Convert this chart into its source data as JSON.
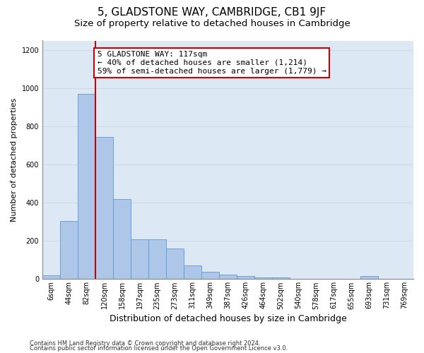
{
  "title1": "5, GLADSTONE WAY, CAMBRIDGE, CB1 9JF",
  "title2": "Size of property relative to detached houses in Cambridge",
  "xlabel": "Distribution of detached houses by size in Cambridge",
  "ylabel": "Number of detached properties",
  "categories": [
    "6sqm",
    "44sqm",
    "82sqm",
    "120sqm",
    "158sqm",
    "197sqm",
    "235sqm",
    "273sqm",
    "311sqm",
    "349sqm",
    "387sqm",
    "426sqm",
    "464sqm",
    "502sqm",
    "540sqm",
    "578sqm",
    "617sqm",
    "655sqm",
    "693sqm",
    "731sqm",
    "769sqm"
  ],
  "values": [
    20,
    305,
    970,
    745,
    420,
    208,
    208,
    160,
    70,
    40,
    25,
    15,
    10,
    10,
    0,
    0,
    0,
    0,
    15,
    0,
    0
  ],
  "bar_color": "#aec6e8",
  "bar_edge_color": "#5b9bd5",
  "background_color": "#dce9f5",
  "grid_color": "#d0d8e8",
  "vline_color": "#cc0000",
  "annotation_line1": "5 GLADSTONE WAY: 117sqm",
  "annotation_line2": "← 40% of detached houses are smaller (1,214)",
  "annotation_line3": "59% of semi-detached houses are larger (1,779) →",
  "annotation_box_color": "#ffffff",
  "annotation_box_edge": "#cc0000",
  "footnote1": "Contains HM Land Registry data © Crown copyright and database right 2024.",
  "footnote2": "Contains public sector information licensed under the Open Government Licence v3.0.",
  "ylim": [
    0,
    1250
  ],
  "yticks": [
    0,
    200,
    400,
    600,
    800,
    1000,
    1200
  ],
  "title1_fontsize": 11,
  "title2_fontsize": 9.5,
  "ylabel_fontsize": 8,
  "xlabel_fontsize": 9,
  "tick_fontsize": 7,
  "annotation_fontsize": 8,
  "footnote_fontsize": 6
}
